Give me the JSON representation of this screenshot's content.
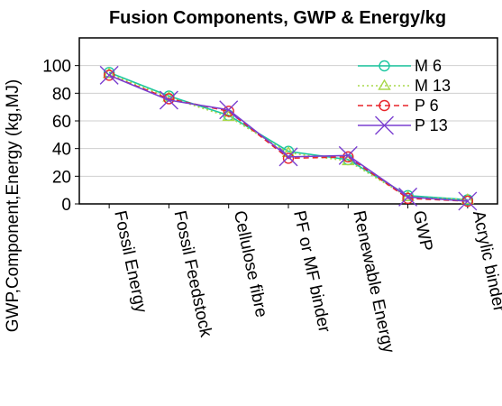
{
  "chart_data": {
    "type": "line",
    "title": "Fusion Components, GWP & Energy/kg",
    "ylabel": "GWP,Component,Energy (kg,MJ)",
    "xlabel": "",
    "ylim": [
      0,
      120
    ],
    "yticks": [
      0,
      20,
      40,
      60,
      80,
      100
    ],
    "grid": "horizontal",
    "legend_position": "top-right",
    "categories": [
      "Fossil Energy",
      "Fossil Feedstock",
      "Cellulose fibre",
      "PF or MF binder",
      "Renewable Energy",
      "GWP",
      "Acrylic binder"
    ],
    "series": [
      {
        "name": "M 6",
        "color": "#1cc7a0",
        "dash": "solid",
        "marker": "circle",
        "values": [
          95,
          78,
          64,
          38,
          32,
          6,
          3
        ]
      },
      {
        "name": "M 13",
        "color": "#a8d84a",
        "dash": "dotted",
        "marker": "triangle",
        "values": [
          94,
          77,
          63,
          37,
          31,
          5,
          3
        ]
      },
      {
        "name": "P 6",
        "color": "#e8242a",
        "dash": "dashed",
        "marker": "circle",
        "values": [
          93,
          76,
          67,
          33,
          34,
          4,
          2
        ]
      },
      {
        "name": "P 13",
        "color": "#7a3fd0",
        "dash": "solid",
        "marker": "cross",
        "values": [
          93,
          75,
          68,
          34,
          35,
          5,
          2
        ]
      }
    ]
  }
}
